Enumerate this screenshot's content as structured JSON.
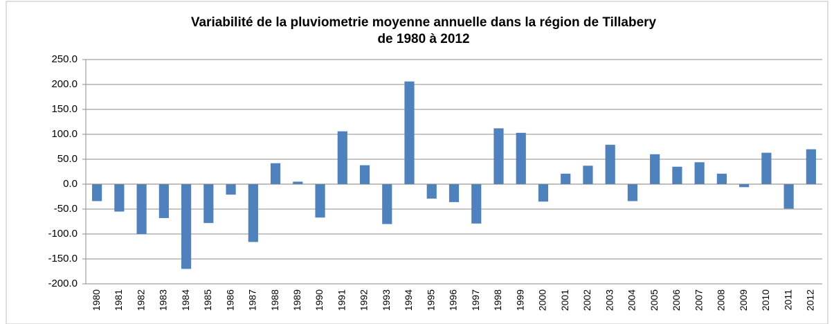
{
  "chart_data": {
    "type": "bar",
    "title": "Variabilité de la pluviometrie moyenne annuelle dans la région de Tillabery",
    "subtitle": "de 1980 à 2012",
    "categories": [
      "1980",
      "1981",
      "1982",
      "1983",
      "1984",
      "1985",
      "1986",
      "1987",
      "1988",
      "1989",
      "1990",
      "1991",
      "1992",
      "1993",
      "1994",
      "1995",
      "1996",
      "1997",
      "1998",
      "1999",
      "2000",
      "2001",
      "2002",
      "2003",
      "2004",
      "2005",
      "2006",
      "2007",
      "2008",
      "2009",
      "2010",
      "2011",
      "2012"
    ],
    "values": [
      -34,
      -55,
      -100,
      -68,
      -170,
      -78,
      -21,
      -116,
      42,
      5,
      -67,
      106,
      38,
      -80,
      206,
      -29,
      -36,
      -79,
      112,
      103,
      -35,
      21,
      37,
      79,
      -34,
      60,
      35,
      44,
      21,
      -6,
      63,
      -49,
      70
    ],
    "color": "#4f81bd",
    "ylim": [
      -200,
      250
    ],
    "yticks": [
      {
        "value": -200,
        "label": "-200.0"
      },
      {
        "value": -150,
        "label": "-150.0"
      },
      {
        "value": -100,
        "label": "-100.0"
      },
      {
        "value": -50,
        "label": "-50.0"
      },
      {
        "value": 0,
        "label": "0.0"
      },
      {
        "value": 50,
        "label": "50.0"
      },
      {
        "value": 100,
        "label": "100.0"
      },
      {
        "value": 150,
        "label": "150.0"
      },
      {
        "value": 200,
        "label": "200.0"
      },
      {
        "value": 250,
        "label": "250.0"
      }
    ],
    "grid": true
  }
}
